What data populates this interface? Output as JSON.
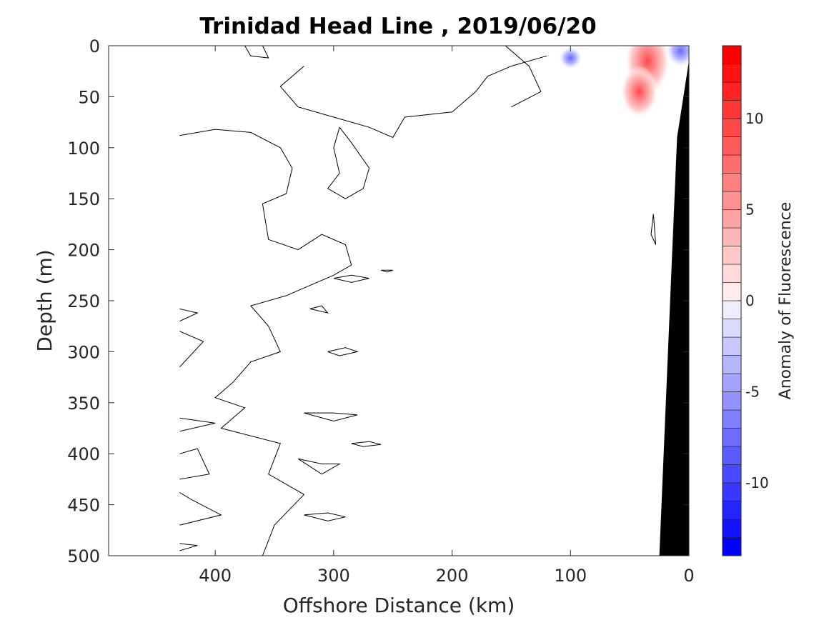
{
  "chart_data": {
    "type": "contour",
    "title": "Trinidad Head Line , 2019/06/20",
    "xlabel": "Offshore Distance (km)",
    "ylabel": "Depth (m)",
    "xlim": [
      490,
      0
    ],
    "ylim": [
      0,
      500
    ],
    "x_reversed": true,
    "y_reversed": true,
    "xticks": [
      400,
      300,
      200,
      100,
      0
    ],
    "xtick_labels": [
      "400",
      "300",
      "200",
      "100",
      "0"
    ],
    "yticks": [
      0,
      50,
      100,
      150,
      200,
      250,
      300,
      350,
      400,
      450,
      500
    ],
    "ytick_labels": [
      "0",
      "50",
      "100",
      "150",
      "200",
      "250",
      "300",
      "350",
      "400",
      "450",
      "500"
    ],
    "grid": false,
    "colorbar": {
      "label": "Anomaly of Fluorescence",
      "range": [
        -14,
        14
      ],
      "levels": 28,
      "ticks": [
        10,
        5,
        0,
        -5,
        -10
      ],
      "tick_labels": [
        "10",
        "5",
        "0",
        "-5",
        "-10"
      ],
      "color_max": "#ff0000",
      "color_mid": "#ffffff",
      "color_min": "#0000ff"
    },
    "anomaly_blobs": [
      {
        "x": 35,
        "depth": 15,
        "value": 7
      },
      {
        "x": 42,
        "depth": 45,
        "value": 3
      },
      {
        "x": 100,
        "depth": 12,
        "value": -1.5
      },
      {
        "x": 7,
        "depth": 5,
        "value": -4
      }
    ],
    "bathymetry": {
      "color": "#000000",
      "points": [
        [
          0,
          15
        ],
        [
          0,
          500
        ],
        [
          25,
          500
        ],
        [
          10,
          90
        ]
      ]
    },
    "contour_lines": [
      {
        "name": "nearshore-zero-contour",
        "points": [
          [
            155,
            0
          ],
          [
            135,
            20
          ],
          [
            125,
            45
          ],
          [
            150,
            60
          ]
        ]
      },
      {
        "name": "upper-band-contour",
        "points": [
          [
            325,
            20
          ],
          [
            345,
            40
          ],
          [
            330,
            60
          ],
          [
            300,
            70
          ],
          [
            270,
            80
          ],
          [
            250,
            90
          ],
          [
            240,
            70
          ],
          [
            200,
            65
          ],
          [
            180,
            45
          ],
          [
            170,
            30
          ],
          [
            150,
            20
          ],
          [
            120,
            10
          ]
        ]
      },
      {
        "name": "mid-plume-contour",
        "points": [
          [
            295,
            80
          ],
          [
            300,
            100
          ],
          [
            295,
            125
          ],
          [
            305,
            140
          ],
          [
            290,
            150
          ],
          [
            275,
            140
          ],
          [
            270,
            120
          ],
          [
            285,
            95
          ],
          [
            295,
            80
          ]
        ]
      },
      {
        "name": "offshore-front-contour",
        "points": [
          [
            430,
            88
          ],
          [
            400,
            82
          ],
          [
            370,
            85
          ],
          [
            345,
            100
          ],
          [
            335,
            120
          ],
          [
            340,
            145
          ],
          [
            360,
            155
          ],
          [
            355,
            190
          ],
          [
            330,
            200
          ],
          [
            310,
            185
          ],
          [
            290,
            195
          ],
          [
            285,
            215
          ],
          [
            300,
            225
          ],
          [
            320,
            235
          ],
          [
            340,
            245
          ],
          [
            370,
            255
          ],
          [
            355,
            275
          ],
          [
            345,
            300
          ],
          [
            370,
            310
          ],
          [
            385,
            330
          ],
          [
            400,
            345
          ],
          [
            375,
            355
          ],
          [
            395,
            375
          ],
          [
            345,
            390
          ],
          [
            355,
            420
          ],
          [
            325,
            440
          ],
          [
            350,
            470
          ],
          [
            360,
            500
          ]
        ]
      },
      {
        "name": "small-eddy-contour-1",
        "points": [
          [
            300,
            228
          ],
          [
            285,
            225
          ],
          [
            270,
            228
          ],
          [
            285,
            232
          ],
          [
            300,
            228
          ]
        ]
      },
      {
        "name": "small-eddy-contour-2",
        "points": [
          [
            320,
            258
          ],
          [
            310,
            255
          ],
          [
            305,
            262
          ],
          [
            320,
            258
          ]
        ]
      },
      {
        "name": "small-eddy-contour-3",
        "points": [
          [
            305,
            300
          ],
          [
            290,
            296
          ],
          [
            280,
            300
          ],
          [
            295,
            304
          ],
          [
            305,
            300
          ]
        ]
      },
      {
        "name": "small-eddy-contour-4",
        "points": [
          [
            325,
            360
          ],
          [
            300,
            360
          ],
          [
            280,
            362
          ],
          [
            300,
            368
          ],
          [
            325,
            360
          ]
        ]
      },
      {
        "name": "small-eddy-contour-5",
        "points": [
          [
            285,
            390
          ],
          [
            270,
            388
          ],
          [
            260,
            391
          ],
          [
            275,
            393
          ],
          [
            285,
            390
          ]
        ]
      },
      {
        "name": "small-eddy-contour-6",
        "points": [
          [
            330,
            405
          ],
          [
            310,
            410
          ],
          [
            295,
            410
          ],
          [
            310,
            420
          ],
          [
            330,
            405
          ]
        ]
      },
      {
        "name": "small-eddy-contour-7",
        "points": [
          [
            325,
            460
          ],
          [
            305,
            458
          ],
          [
            290,
            462
          ],
          [
            305,
            466
          ],
          [
            325,
            460
          ]
        ]
      },
      {
        "name": "west-edge-contour-1",
        "points": [
          [
            430,
            258
          ],
          [
            415,
            262
          ],
          [
            430,
            270
          ]
        ]
      },
      {
        "name": "west-edge-contour-2",
        "points": [
          [
            430,
            280
          ],
          [
            410,
            290
          ],
          [
            430,
            315
          ]
        ]
      },
      {
        "name": "west-edge-contour-3",
        "points": [
          [
            430,
            365
          ],
          [
            400,
            370
          ],
          [
            430,
            378
          ]
        ]
      },
      {
        "name": "west-edge-contour-4",
        "points": [
          [
            430,
            400
          ],
          [
            415,
            395
          ],
          [
            405,
            420
          ],
          [
            430,
            425
          ]
        ]
      },
      {
        "name": "west-edge-contour-5",
        "points": [
          [
            430,
            438
          ],
          [
            420,
            445
          ],
          [
            395,
            460
          ],
          [
            430,
            470
          ]
        ]
      },
      {
        "name": "west-edge-contour-6",
        "points": [
          [
            430,
            488
          ],
          [
            415,
            490
          ],
          [
            430,
            495
          ]
        ]
      },
      {
        "name": "surface-dimple-contour",
        "points": [
          [
            375,
            0
          ],
          [
            370,
            10
          ],
          [
            355,
            12
          ],
          [
            360,
            0
          ]
        ]
      },
      {
        "name": "deep-nearshore-eddy-contour",
        "points": [
          [
            30,
            165
          ],
          [
            32,
            185
          ],
          [
            28,
            195
          ],
          [
            30,
            165
          ]
        ]
      },
      {
        "name": "small-ring-contour",
        "points": [
          [
            260,
            220
          ],
          [
            250,
            220
          ],
          [
            255,
            222
          ],
          [
            260,
            220
          ]
        ]
      }
    ]
  }
}
